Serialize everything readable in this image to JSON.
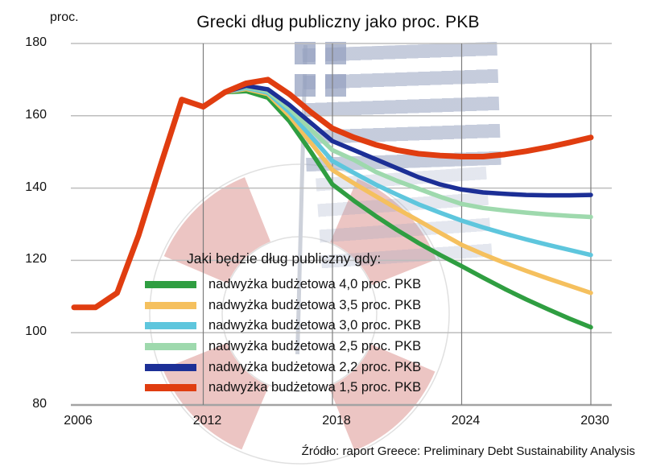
{
  "header": {
    "title": "Grecki dług publiczny jako proc. PKB",
    "unit_label": "proc."
  },
  "source": {
    "text": "Źródło: raport Greece: Preliminary Debt Sustainability Analysis"
  },
  "legend": {
    "title": "Jaki będzie dług publiczny gdy:",
    "items": [
      {
        "label": "nadwyżka budżetowa 4,0 proc. PKB",
        "color": "#2f9e41"
      },
      {
        "label": "nadwyżka budżetowa 3,5 proc. PKB",
        "color": "#f5c05e"
      },
      {
        "label": "nadwyżka budżetowa 3,0 proc. PKB",
        "color": "#5ec6dd"
      },
      {
        "label": "nadwyżka budżetowa 2,5 proc. PKB",
        "color": "#9ed9ad"
      },
      {
        "label": "nadwyżka budżetowa 2,2 proc. PKB",
        "color": "#1c2f96"
      },
      {
        "label": "nadwyżka budżetowa 1,5 proc. PKB",
        "color": "#e03d10"
      }
    ]
  },
  "axes": {
    "y_ticks": [
      180,
      160,
      140,
      120,
      100,
      80
    ],
    "x_ticks": [
      2006,
      2012,
      2018,
      2024,
      2030
    ]
  },
  "chart_data": {
    "type": "line",
    "title": "Grecki dług publiczny jako proc. PKB",
    "xlabel": "",
    "ylabel": "proc.",
    "xlim": [
      2006,
      2030
    ],
    "ylim": [
      80,
      180
    ],
    "grid": true,
    "legend_position": "inside-center-left",
    "x": [
      2006,
      2007,
      2008,
      2009,
      2010,
      2011,
      2012,
      2013,
      2014,
      2015,
      2016,
      2017,
      2018,
      2019,
      2020,
      2021,
      2022,
      2023,
      2024,
      2025,
      2026,
      2027,
      2028,
      2029,
      2030
    ],
    "series": [
      {
        "name": "nadwyżka budżetowa 4,0 proc. PKB",
        "color": "#2f9e41",
        "values": [
          null,
          null,
          null,
          null,
          null,
          null,
          null,
          166.5,
          166.8,
          165,
          158.5,
          150,
          141,
          136.5,
          132.3,
          128.4,
          124.8,
          121.5,
          118.4,
          115.2,
          112.1,
          109.2,
          106.5,
          103.9,
          101.5
        ]
      },
      {
        "name": "nadwyżka budżetowa 3,5 proc. PKB",
        "color": "#f5c05e",
        "values": [
          null,
          null,
          null,
          null,
          null,
          null,
          null,
          166.5,
          167.4,
          166,
          160,
          152.5,
          145,
          141.3,
          137.8,
          134.3,
          131,
          127.6,
          124.3,
          121.7,
          119.3,
          117.1,
          115,
          113,
          111
        ]
      },
      {
        "name": "nadwyżka budżetowa 3,0 proc. PKB",
        "color": "#5ec6dd",
        "values": [
          null,
          null,
          null,
          null,
          null,
          null,
          null,
          166.5,
          167.7,
          166.4,
          161,
          154.3,
          147.5,
          144.2,
          141,
          138.2,
          135.5,
          133.2,
          131,
          129.1,
          127.4,
          125.8,
          124.3,
          122.9,
          121.5
        ]
      },
      {
        "name": "nadwyżka budżetowa 2,5 proc. PKB",
        "color": "#9ed9ad",
        "values": [
          null,
          null,
          null,
          null,
          null,
          null,
          null,
          166.5,
          168,
          166.8,
          162,
          156.2,
          150.5,
          147.8,
          144.5,
          142,
          139.8,
          137.6,
          135.6,
          134.5,
          133.8,
          133.2,
          132.7,
          132.3,
          132
        ]
      },
      {
        "name": "nadwyżka budżetowa 2,2 proc. PKB",
        "color": "#1c2f96",
        "values": [
          null,
          null,
          null,
          null,
          null,
          null,
          null,
          166.5,
          168.3,
          167.3,
          163,
          158,
          153,
          150.5,
          148,
          145.5,
          143,
          141,
          139.6,
          138.8,
          138.4,
          138.1,
          138,
          138,
          138.1
        ]
      },
      {
        "name": "nadwyżka budżetowa 1,5 proc. PKB",
        "color": "#e03d10",
        "values": [
          107,
          107,
          111,
          127,
          146,
          164.5,
          162.5,
          166.5,
          169,
          170,
          166,
          161,
          156.5,
          154,
          152,
          150.5,
          149.5,
          149,
          148.7,
          148.7,
          149.3,
          150.2,
          151.3,
          152.6,
          154
        ]
      }
    ]
  }
}
